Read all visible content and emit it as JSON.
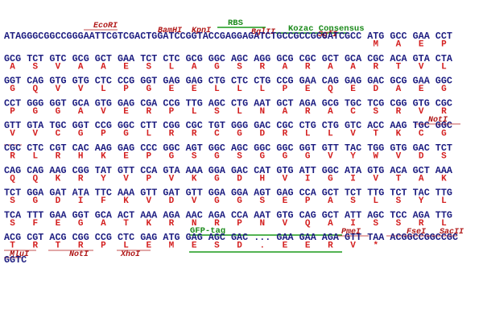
{
  "rows": [
    {
      "dna": "ATAGGGCGGCCGGGAATTCGTCGACTGGATCCGGTACCGAGGAGATCTGCCGCCGCGATCGCC ATG GCC GAA CCT",
      "aa": [
        null,
        "M",
        "A",
        "E",
        "P"
      ]
    },
    {
      "dna": "GCG TCT GTC GCG GCT GAA TCT CTC GCG GGC AGC AGG GCG CGC GCT GCA CGC ACA GTA CTA",
      "aa": [
        "A",
        "S",
        "V",
        "A",
        "A",
        "E",
        "S",
        "L",
        "A",
        "G",
        "S",
        "R",
        "A",
        "R",
        "A",
        "A",
        "R",
        "T",
        "V",
        "L"
      ]
    },
    {
      "dna": "GGT CAG GTG GTG CTC CCG GGT GAG GAG CTG CTC CTG CCG GAA CAG GAG GAC GCG GAA GGC",
      "aa": [
        "G",
        "Q",
        "V",
        "V",
        "L",
        "P",
        "G",
        "E",
        "E",
        "L",
        "L",
        "L",
        "P",
        "E",
        "Q",
        "E",
        "D",
        "A",
        "E",
        "G"
      ]
    },
    {
      "dna": "CCT GGG GGT GCA GTG GAG CGA CCG TTG AGC CTG AAT GCT AGA GCG TGC TCG CGG GTG CGC",
      "aa": [
        "P",
        "G",
        "G",
        "A",
        "V",
        "E",
        "R",
        "P",
        "L",
        "S",
        "L",
        "N",
        "A",
        "R",
        "A",
        "C",
        "S",
        "R",
        "V",
        "R"
      ]
    },
    {
      "dna": "GTT GTA TGC GGT CCG GGC CTT CGG CGC TGT GGG GAC CGC CTG CTG GTC ACC AAG TGC GGC",
      "aa": [
        "V",
        "V",
        "C",
        "G",
        "P",
        "G",
        "L",
        "R",
        "R",
        "C",
        "G",
        "D",
        "R",
        "L",
        "L",
        "V",
        "T",
        "K",
        "C",
        "G"
      ]
    },
    {
      "dna": "CGC CTC CGT CAC AAG GAG CCC GGC AGT GGC AGC GGC GGC GGT GTT TAC TGG GTG GAC TCT",
      "aa": [
        "R",
        "L",
        "R",
        "H",
        "K",
        "E",
        "P",
        "G",
        "S",
        "G",
        "S",
        "G",
        "G",
        "G",
        "V",
        "Y",
        "W",
        "V",
        "D",
        "S"
      ]
    },
    {
      "dna": "CAG CAG AAG CGG TAT GTT CCA GTA AAA GGA GAC CAT GTG ATT GGC ATA GTG ACA GCT AAA",
      "aa": [
        "Q",
        "Q",
        "K",
        "R",
        "Y",
        "V",
        "P",
        "V",
        "K",
        "G",
        "D",
        "H",
        "V",
        "I",
        "G",
        "I",
        "V",
        "T",
        "A",
        "K"
      ]
    },
    {
      "dna": "TCT GGA GAT ATA TTC AAA GTT GAT GTT GGA GGA AGT GAG CCA GCT TCT TTG TCT TAC TTG",
      "aa": [
        "S",
        "G",
        "D",
        "I",
        "F",
        "K",
        "V",
        "D",
        "V",
        "G",
        "G",
        "S",
        "E",
        "P",
        "A",
        "S",
        "L",
        "S",
        "Y",
        "L"
      ]
    },
    {
      "dna": "TCA TTT GAA GGT GCA ACT AAA AGA AAC AGA CCA AAT GTG CAG GCT ATT AGC TCC AGA TTG",
      "aa": [
        "S",
        "F",
        "E",
        "G",
        "A",
        "T",
        "K",
        "R",
        "N",
        "R",
        "P",
        "N",
        "V",
        "Q",
        "A",
        "I",
        "S",
        "S",
        "R",
        "L"
      ]
    },
    {
      "dna": "ACG CGT ACG CGG CCG CTC GAG ATG GAG AGC GAC ... GAA GAA AGA GTT TAA ACGGCCGGCCGC",
      "aa": [
        "T",
        "R",
        "T",
        "R",
        "P",
        "L",
        "E",
        "M",
        "E",
        "S",
        "D",
        ".",
        "E",
        "E",
        "R",
        "V",
        "*",
        null
      ]
    },
    {
      "dna": "GGTC"
    }
  ],
  "features": [
    "EcoRI",
    "BamHI",
    "KpnI",
    "RBS",
    "BglII",
    "Kozac Consensus",
    "SgfI",
    "NotI",
    "GFP-tag",
    "PmeI",
    "FseI",
    "SacII",
    "MluI",
    "NotI",
    "XhoI"
  ]
}
